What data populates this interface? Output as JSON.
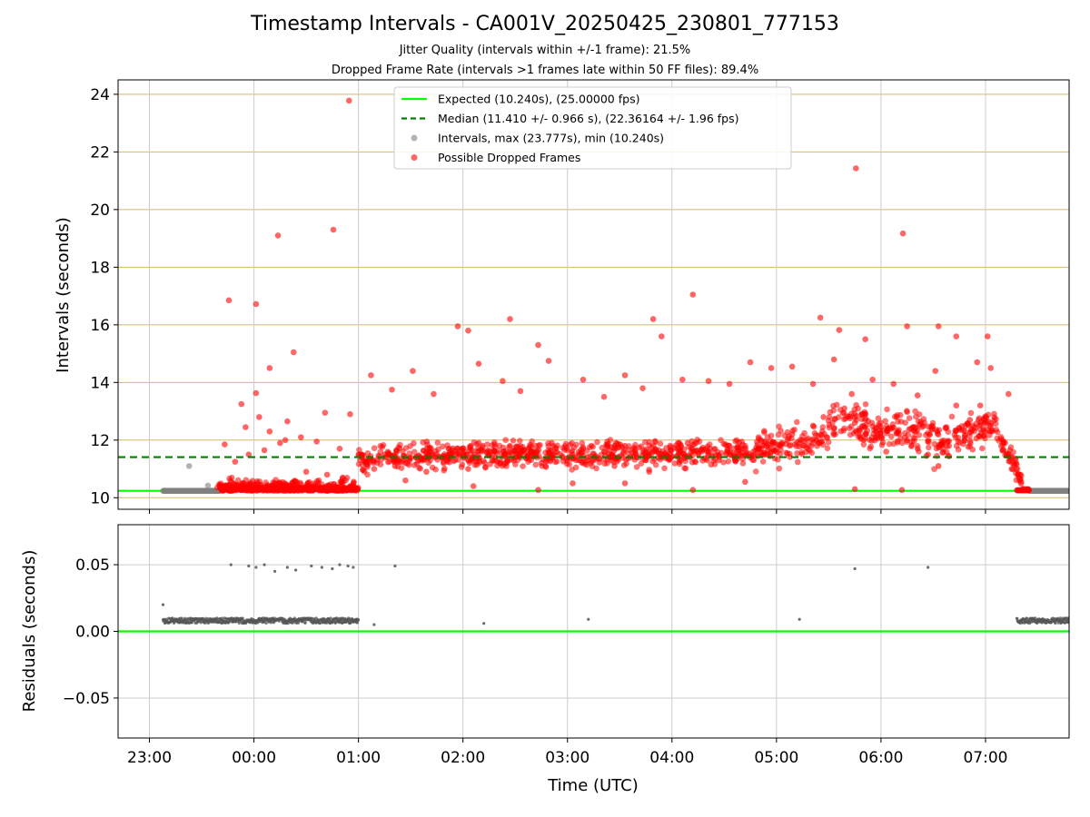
{
  "chart_data": [
    {
      "type": "scatter",
      "title": "Timestamp Intervals - CA001V_20250425_230801_777153",
      "subtitle_lines": [
        "Jitter Quality (intervals within +/-1 frame): 21.5%",
        "Dropped Frame Rate (intervals >1 frames late within 50 FF files): 89.4%"
      ],
      "xlabel": "",
      "ylabel": "Intervals (seconds)",
      "x_unit": "hours since 23:00 UTC on 2025-04-25",
      "xlim": [
        -0.3,
        8.8
      ],
      "ylim": [
        9.6,
        24.5
      ],
      "yticks": [
        10,
        12,
        14,
        16,
        18,
        20,
        22,
        24
      ],
      "xticks": [
        0,
        1,
        2,
        3,
        4,
        5,
        6,
        7,
        8
      ],
      "grid": true,
      "legend_position": "upper center",
      "expected_interval": 10.24,
      "median_interval": 11.41,
      "series": [
        {
          "name": "Expected (10.240s), (25.00000 fps)",
          "kind": "line",
          "color": "#00ff00",
          "y": 10.24
        },
        {
          "name": "Median (11.410 +/- 0.966 s), (22.36164 +/- 1.96 fps)",
          "kind": "dashed-line",
          "color": "#008000",
          "y": 11.41
        },
        {
          "name": "Intervals, max (23.777s), min (10.240s)",
          "kind": "scatter",
          "color": "#808080",
          "points": [
            [
              0.38,
              11.1
            ],
            [
              0.56,
              10.42
            ],
            [
              0.15,
              10.24
            ],
            [
              0.25,
              10.24
            ],
            [
              0.35,
              10.24
            ],
            [
              0.45,
              10.24
            ],
            [
              0.55,
              10.24
            ],
            [
              0.65,
              10.24
            ],
            [
              8.5,
              10.24
            ],
            [
              8.6,
              10.24
            ],
            [
              8.7,
              10.24
            ]
          ]
        },
        {
          "name": "Possible Dropped Frames",
          "kind": "scatter",
          "color": "#ff0000",
          "points": [
            [
              1.91,
              23.78
            ],
            [
              6.76,
              21.43
            ],
            [
              7.21,
              19.17
            ],
            [
              1.23,
              19.1
            ],
            [
              1.76,
              19.3
            ],
            [
              0.76,
              16.85
            ],
            [
              1.02,
              16.72
            ],
            [
              5.2,
              17.05
            ],
            [
              3.45,
              16.2
            ],
            [
              4.82,
              16.2
            ],
            [
              6.42,
              16.25
            ],
            [
              2.95,
              15.95
            ],
            [
              3.05,
              15.8
            ],
            [
              6.6,
              15.82
            ],
            [
              6.85,
              15.5
            ],
            [
              7.25,
              15.95
            ],
            [
              7.55,
              15.95
            ],
            [
              7.72,
              15.6
            ],
            [
              8.02,
              15.6
            ],
            [
              1.38,
              15.05
            ],
            [
              1.15,
              14.5
            ],
            [
              1.32,
              12.65
            ],
            [
              0.92,
              12.45
            ],
            [
              1.05,
              12.8
            ],
            [
              1.15,
              12.3
            ],
            [
              0.88,
              13.25
            ],
            [
              1.02,
              13.63
            ],
            [
              0.72,
              11.85
            ],
            [
              0.82,
              11.25
            ],
            [
              0.95,
              11.5
            ],
            [
              1.1,
              11.65
            ],
            [
              1.25,
              11.9
            ],
            [
              1.45,
              12.1
            ],
            [
              1.6,
              11.95
            ],
            [
              1.68,
              12.95
            ],
            [
              1.82,
              11.7
            ],
            [
              1.92,
              12.9
            ],
            [
              2.12,
              14.25
            ],
            [
              2.32,
              13.75
            ],
            [
              2.52,
              14.4
            ],
            [
              2.72,
              13.6
            ],
            [
              3.15,
              14.65
            ],
            [
              3.38,
              14.05
            ],
            [
              3.55,
              13.7
            ],
            [
              3.72,
              15.3
            ],
            [
              3.82,
              14.75
            ],
            [
              4.15,
              14.1
            ],
            [
              4.35,
              13.5
            ],
            [
              4.55,
              14.25
            ],
            [
              4.72,
              13.8
            ],
            [
              4.9,
              15.6
            ],
            [
              5.1,
              14.1
            ],
            [
              5.35,
              14.05
            ],
            [
              5.55,
              13.95
            ],
            [
              5.75,
              14.7
            ],
            [
              5.95,
              14.5
            ],
            [
              6.15,
              14.55
            ],
            [
              6.35,
              13.95
            ],
            [
              6.55,
              14.8
            ],
            [
              6.72,
              13.6
            ],
            [
              6.92,
              14.1
            ],
            [
              7.12,
              13.95
            ],
            [
              7.35,
              13.55
            ],
            [
              7.52,
              14.4
            ],
            [
              7.72,
              13.2
            ],
            [
              7.92,
              14.7
            ],
            [
              8.05,
              14.5
            ],
            [
              8.22,
              13.6
            ],
            [
              1.3,
              12.0
            ],
            [
              1.5,
              10.9
            ],
            [
              1.62,
              10.6
            ],
            [
              1.7,
              10.8
            ],
            [
              1.85,
              10.7
            ],
            [
              2.05,
              11.3
            ],
            [
              2.15,
              11.0
            ],
            [
              2.25,
              11.5
            ],
            [
              2.35,
              11.1
            ],
            [
              2.45,
              11.2
            ],
            [
              2.55,
              11.4
            ],
            [
              2.65,
              10.9
            ],
            [
              2.75,
              11.5
            ],
            [
              2.85,
              11.3
            ],
            [
              2.95,
              11.7
            ],
            [
              3.05,
              11.0
            ],
            [
              3.15,
              11.9
            ],
            [
              3.25,
              11.5
            ],
            [
              3.35,
              11.2
            ],
            [
              3.45,
              11.8
            ],
            [
              3.55,
              11.4
            ],
            [
              3.65,
              11.6
            ],
            [
              3.75,
              11.2
            ],
            [
              3.85,
              11.9
            ],
            [
              3.95,
              11.4
            ],
            [
              4.05,
              11.5
            ],
            [
              4.15,
              11.7
            ],
            [
              4.25,
              11.3
            ],
            [
              4.35,
              11.6
            ],
            [
              4.45,
              11.1
            ],
            [
              4.55,
              11.8
            ],
            [
              4.65,
              11.5
            ],
            [
              4.75,
              11.3
            ],
            [
              4.85,
              11.6
            ],
            [
              4.95,
              11.4
            ],
            [
              5.05,
              11.7
            ],
            [
              5.15,
              11.9
            ],
            [
              5.25,
              11.5
            ],
            [
              5.35,
              11.6
            ],
            [
              5.45,
              11.3
            ],
            [
              5.55,
              11.8
            ],
            [
              5.65,
              11.5
            ],
            [
              5.75,
              11.4
            ],
            [
              5.85,
              11.7
            ],
            [
              5.95,
              11.6
            ],
            [
              6.05,
              11.9
            ],
            [
              6.15,
              12.2
            ],
            [
              6.25,
              11.8
            ],
            [
              6.35,
              12.5
            ],
            [
              6.45,
              12.8
            ],
            [
              6.55,
              12.4
            ],
            [
              6.65,
              13.1
            ],
            [
              6.75,
              12.6
            ],
            [
              6.85,
              12.9
            ],
            [
              6.95,
              12.1
            ],
            [
              7.05,
              11.6
            ],
            [
              7.15,
              12.8
            ],
            [
              7.25,
              12.0
            ],
            [
              7.35,
              11.7
            ],
            [
              7.45,
              11.5
            ],
            [
              7.55,
              11.1
            ],
            [
              7.65,
              11.8
            ],
            [
              7.75,
              12.4
            ],
            [
              7.85,
              12.7
            ],
            [
              7.95,
              13.2
            ],
            [
              8.05,
              12.5
            ],
            [
              8.15,
              11.8
            ],
            [
              8.25,
              11.0
            ],
            [
              8.32,
              10.7
            ],
            [
              3.72,
              10.27
            ],
            [
              4.05,
              10.5
            ],
            [
              4.55,
              10.5
            ],
            [
              5.2,
              10.27
            ],
            [
              6.75,
              10.3
            ],
            [
              7.2,
              10.27
            ],
            [
              2.45,
              10.6
            ],
            [
              3.1,
              10.4
            ],
            [
              5.7,
              10.55
            ]
          ]
        }
      ]
    },
    {
      "type": "scatter",
      "title": "",
      "xlabel": "Time (UTC)",
      "ylabel": "Residuals (seconds)",
      "xlim": [
        -0.3,
        8.8
      ],
      "ylim": [
        -0.08,
        0.08
      ],
      "yticks": [
        -0.05,
        0.0,
        0.05
      ],
      "grid": true,
      "xtick_labels": [
        "23:00",
        "00:00",
        "01:00",
        "02:00",
        "03:00",
        "04:00",
        "05:00",
        "06:00",
        "07:00"
      ],
      "zero_line_color": "#00ff00",
      "series": [
        {
          "name": "",
          "kind": "scatter",
          "color": "#555555",
          "points": [
            [
              0.13,
              0.02
            ],
            [
              0.78,
              0.05
            ],
            [
              0.95,
              0.049
            ],
            [
              1.02,
              0.048
            ],
            [
              1.1,
              0.05
            ],
            [
              1.2,
              0.045
            ],
            [
              1.32,
              0.048
            ],
            [
              1.4,
              0.046
            ],
            [
              1.55,
              0.049
            ],
            [
              1.65,
              0.048
            ],
            [
              1.75,
              0.047
            ],
            [
              1.82,
              0.05
            ],
            [
              1.9,
              0.049
            ],
            [
              1.95,
              0.048
            ],
            [
              2.35,
              0.049
            ],
            [
              6.75,
              0.047
            ],
            [
              7.45,
              0.048
            ],
            [
              3.2,
              0.006
            ],
            [
              4.2,
              0.009
            ],
            [
              6.22,
              0.009
            ],
            [
              2.15,
              0.005
            ],
            [
              1.98,
              0.007
            ]
          ],
          "bands": [
            {
              "x_from": 0.13,
              "x_to": 2.0,
              "y": 0.008
            },
            {
              "x_from": 8.3,
              "x_to": 8.8,
              "y": 0.008
            }
          ]
        }
      ]
    }
  ],
  "legend": {
    "entries": [
      "Expected (10.240s), (25.00000 fps)",
      "Median (11.410 +/- 0.966 s), (22.36164 +/- 1.96 fps)",
      "Intervals, max (23.777s), min (10.240s)",
      "Possible Dropped Frames"
    ]
  }
}
